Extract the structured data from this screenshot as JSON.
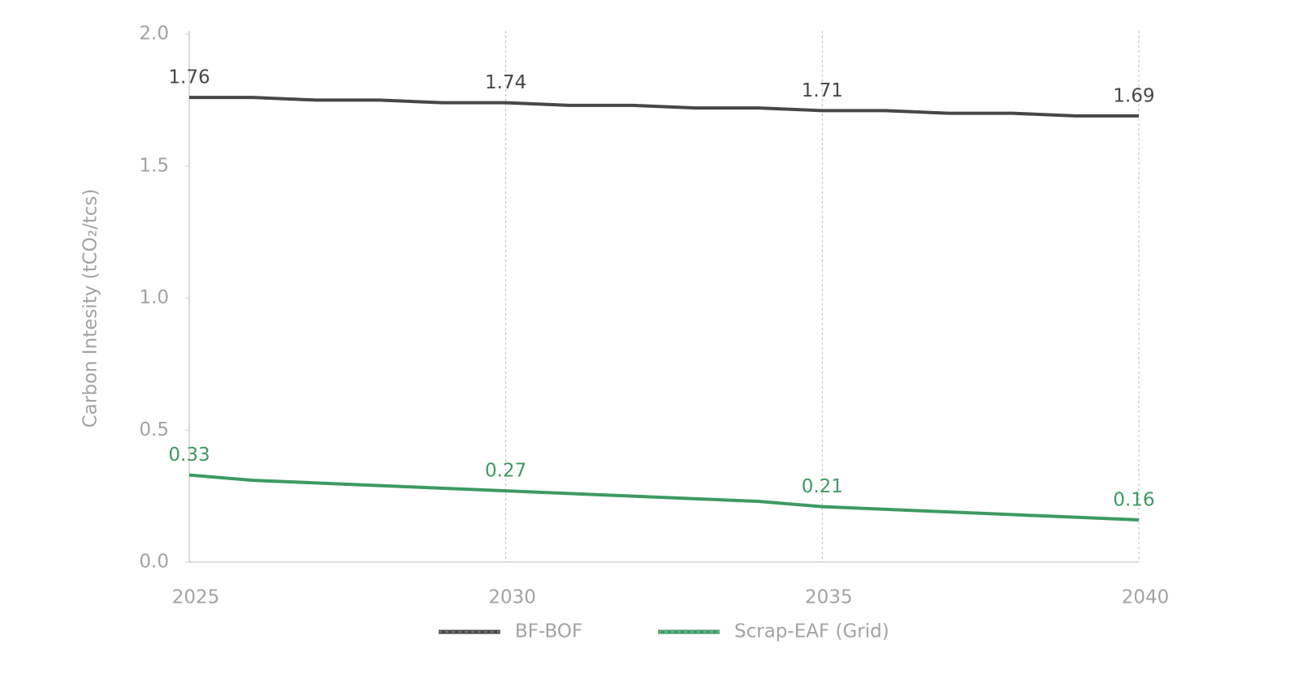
{
  "chart_data": {
    "type": "line",
    "y_label": "Carbon Intesity (tCO₂/tcs)",
    "x": [
      2025,
      2026,
      2027,
      2028,
      2029,
      2030,
      2031,
      2032,
      2033,
      2034,
      2035,
      2036,
      2037,
      2038,
      2039,
      2040
    ],
    "series": [
      {
        "name": "BF-BOF",
        "color": "#474747",
        "values": [
          1.76,
          1.76,
          1.75,
          1.75,
          1.74,
          1.74,
          1.73,
          1.73,
          1.72,
          1.72,
          1.71,
          1.71,
          1.7,
          1.7,
          1.69,
          1.69
        ]
      },
      {
        "name": "Scrap-EAF (Grid)",
        "color": "#3d9a62",
        "values": [
          0.33,
          0.31,
          0.3,
          0.29,
          0.28,
          0.27,
          0.26,
          0.25,
          0.24,
          0.23,
          0.21,
          0.2,
          0.19,
          0.18,
          0.17,
          0.16
        ]
      }
    ],
    "xlim": [
      2025,
      2040
    ],
    "xticks": [
      2025,
      2030,
      2035,
      2040
    ],
    "ylim": [
      0,
      2
    ],
    "yticks": [
      {
        "value": 0,
        "label": "0.0"
      },
      0.5,
      {
        "value": 1,
        "label": "1.0"
      },
      1.5,
      {
        "value": 2,
        "label": "2.0"
      }
    ],
    "grid": "x",
    "legend": "bottom"
  }
}
